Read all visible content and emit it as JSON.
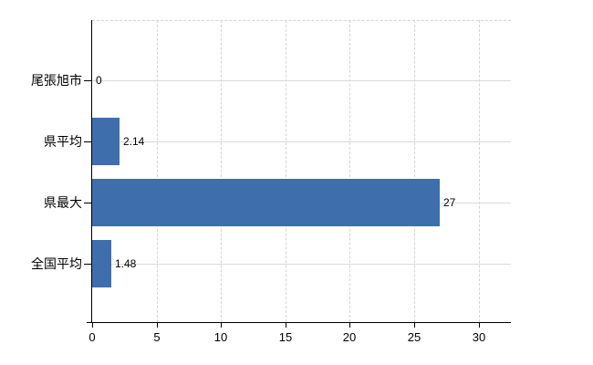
{
  "chart_data": {
    "type": "bar",
    "orientation": "horizontal",
    "title": "",
    "xlabel": "",
    "ylabel": "",
    "categories": [
      "尾張旭市",
      "県平均",
      "県最大",
      "全国平均"
    ],
    "values": [
      0,
      2.14,
      27,
      1.48
    ],
    "value_labels": [
      "0",
      "2.14",
      "27",
      "1.48"
    ],
    "xticks": [
      0,
      5,
      10,
      15,
      20,
      25,
      30
    ],
    "xlim": [
      0,
      32.5
    ],
    "grid": true,
    "legend": false,
    "bar_color": "#3e6eac",
    "grid_color_horizontal": "#d6ddd6",
    "grid_color_vertical": "#d8d2d8",
    "axis_color": "#000000",
    "text_color": "#000000",
    "background_color": "#ffffff"
  }
}
